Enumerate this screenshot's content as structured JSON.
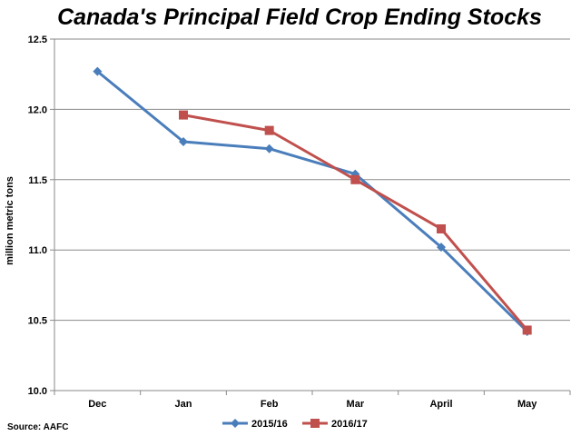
{
  "chart_data": {
    "type": "line",
    "title": "Canada's Principal Field Crop Ending Stocks",
    "ylabel": "million metric tons",
    "xlabel": "",
    "categories": [
      "Dec",
      "Jan",
      "Feb",
      "Mar",
      "April",
      "May"
    ],
    "ylim": [
      10.0,
      12.5
    ],
    "yticks": [
      "10.0",
      "10.5",
      "11.0",
      "11.5",
      "12.0",
      "12.5"
    ],
    "grid": true,
    "legend_position": "bottom",
    "series": [
      {
        "name": "2015/16",
        "color": "#4a7ebb",
        "marker": "diamond",
        "values": [
          12.27,
          11.77,
          11.72,
          11.54,
          11.02,
          10.42
        ]
      },
      {
        "name": "2016/17",
        "color": "#c0504d",
        "marker": "square",
        "values": [
          null,
          11.96,
          11.85,
          11.5,
          11.15,
          10.43
        ]
      }
    ]
  },
  "source": "Source: AAFC"
}
